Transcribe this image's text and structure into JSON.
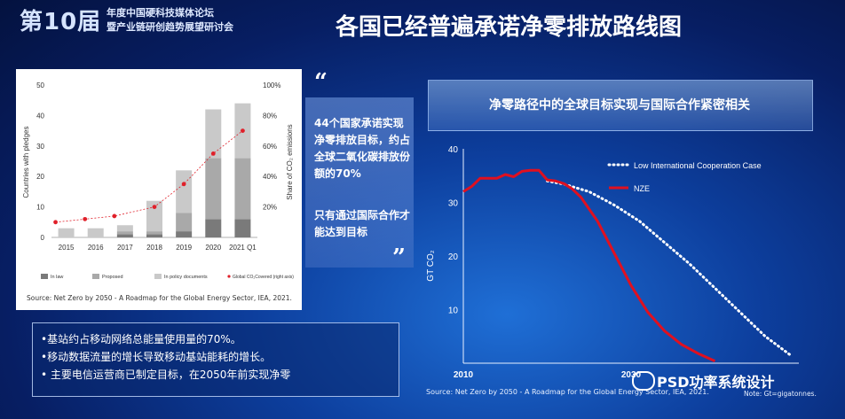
{
  "header": {
    "logo_number": "第10届",
    "logo_line1": "年度中国硬科技媒体论坛",
    "logo_line2": "暨产业链研创趋势展望研讨会",
    "title": "各国已经普遍承诺净零排放路线图"
  },
  "quote": {
    "open_mark": "“",
    "close_mark": "”",
    "text1": "44个国家承诺实现净零排放目标，约占全球二氧化碳排放份额的70%",
    "text2": "只有通过国际合作才能达到目标"
  },
  "bullets": [
    "•基站约占移动网络总能量使用量的70%。",
    "•移动数据流量的增长导致移动基站能耗的增长。",
    "• 主要电信运营商已制定目标，在2050年前实现净零"
  ],
  "left_source": "Source: Net Zero by 2050 - A Roadmap for the Global Energy Sector, IEA, 2021.",
  "right_title": "净零路径中的全球目标实现与国际合作紧密相关",
  "right_source": "Source: Net Zero by 2050 - A Roadmap for the Global Energy Sector, IEA, 2021.",
  "right_note": "Note: Gt=gigatonnes.",
  "watermark": "PSD功率系统设计",
  "colors": {
    "law": "#7a7a7a",
    "proposed": "#a9a9a9",
    "policy": "#c9c9c9",
    "covered_dot": "#e0202a",
    "nze": "#e01020",
    "low_coop": "#ffffff"
  },
  "chart_data": [
    {
      "type": "bar",
      "title": "",
      "xlabel": "",
      "ylabel": "Countries with pledges",
      "y2label": "Share of CO₂ emissions",
      "ylim": [
        0,
        50
      ],
      "y2lim": [
        0,
        100
      ],
      "yticks": [
        "0",
        "10",
        "20",
        "30",
        "40",
        "50"
      ],
      "y2ticks": [
        "20%",
        "40%",
        "60%",
        "80%",
        "100%"
      ],
      "categories": [
        "2015",
        "2016",
        "2017",
        "2018",
        "2019",
        "2020",
        "2021 Q1"
      ],
      "stacked": true,
      "series": [
        {
          "name": "In law",
          "values": [
            0,
            0,
            1,
            1,
            2,
            6,
            6
          ]
        },
        {
          "name": "Proposed",
          "values": [
            0,
            0,
            1,
            1,
            6,
            20,
            20
          ]
        },
        {
          "name": "In policy documents",
          "values": [
            3,
            3,
            2,
            10,
            14,
            16,
            18
          ]
        }
      ],
      "line_series": {
        "name": "Global CO₂Covered (right axis)",
        "axis": "right",
        "values": [
          10,
          12,
          14,
          20,
          35,
          55,
          70
        ]
      },
      "legend": [
        "In law",
        "Proposed",
        "In policy documents",
        "Global CO₂Covered (right axis)"
      ],
      "legend_position": "bottom"
    },
    {
      "type": "line",
      "title": "",
      "xlabel": "",
      "ylabel": "GT CO₂",
      "ylim": [
        0,
        40
      ],
      "xlim": [
        2010,
        2050
      ],
      "yticks": [
        "10",
        "20",
        "30",
        "40"
      ],
      "xticks": [
        "2010",
        "2030"
      ],
      "legend_position": "top-right",
      "series": [
        {
          "name": "Low International Cooperation Case",
          "style": "dotted",
          "x": [
            2020,
            2022,
            2025,
            2028,
            2031,
            2034,
            2037,
            2040,
            2043,
            2046,
            2049
          ],
          "y": [
            34,
            33.4,
            32,
            29.5,
            26.5,
            22.5,
            18.5,
            14,
            9.5,
            5,
            1.5
          ]
        },
        {
          "name": "NZE",
          "style": "solid",
          "x": [
            2010,
            2011,
            2012,
            2013,
            2014,
            2015,
            2016,
            2017,
            2018,
            2019,
            2020,
            2021,
            2022,
            2023,
            2024,
            2026,
            2028,
            2030,
            2032,
            2034,
            2036,
            2038,
            2040
          ],
          "y": [
            32,
            33,
            34.5,
            34.5,
            34.5,
            35.2,
            34.8,
            35.8,
            36,
            36,
            34.2,
            34,
            33.5,
            32.5,
            31,
            26.5,
            20.5,
            14.5,
            9.5,
            6,
            3.5,
            1.8,
            0.4
          ]
        }
      ]
    }
  ]
}
